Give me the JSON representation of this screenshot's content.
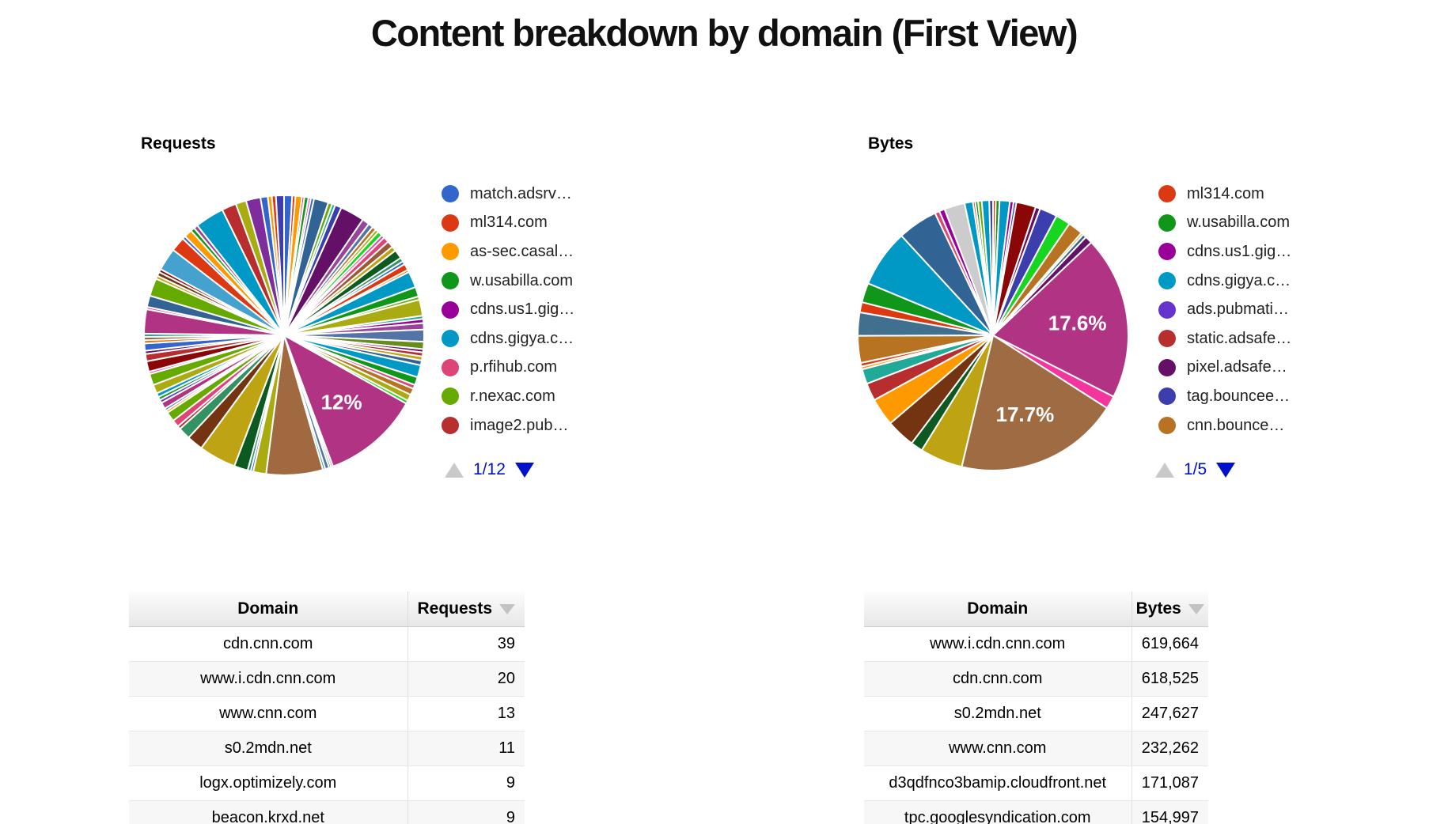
{
  "page": {
    "title": "Content breakdown by domain (First View)"
  },
  "requests_section": {
    "caption": "Requests",
    "pager": {
      "page": "1/12",
      "up_enabled": false,
      "down_enabled": true
    },
    "legend": [
      {
        "label": "match.adsrv…",
        "color": "#3366cc"
      },
      {
        "label": "ml314.com",
        "color": "#dc3912"
      },
      {
        "label": "as-sec.casal…",
        "color": "#ff9900"
      },
      {
        "label": "w.usabilla.com",
        "color": "#109618"
      },
      {
        "label": "cdns.us1.gig…",
        "color": "#990099"
      },
      {
        "label": "cdns.gigya.c…",
        "color": "#0099c6"
      },
      {
        "label": "p.rfihub.com",
        "color": "#dd4477"
      },
      {
        "label": "r.nexac.com",
        "color": "#66aa00"
      },
      {
        "label": "image2.pub…",
        "color": "#b82e2e"
      }
    ],
    "table": {
      "headers": [
        "Domain",
        "Requests"
      ],
      "sorted_by": "Requests",
      "sort_direction": "desc",
      "rows": [
        [
          "cdn.cnn.com",
          "39"
        ],
        [
          "www.i.cdn.cnn.com",
          "20"
        ],
        [
          "www.cnn.com",
          "13"
        ],
        [
          "s0.2mdn.net",
          "11"
        ],
        [
          "logx.optimizely.com",
          "9"
        ],
        [
          "beacon.krxd.net",
          "9"
        ]
      ]
    }
  },
  "bytes_section": {
    "caption": "Bytes",
    "pager": {
      "page": "1/5",
      "up_enabled": false,
      "down_enabled": true
    },
    "legend": [
      {
        "label": "ml314.com",
        "color": "#dc3912"
      },
      {
        "label": "w.usabilla.com",
        "color": "#109618"
      },
      {
        "label": "cdns.us1.gig…",
        "color": "#990099"
      },
      {
        "label": "cdns.gigya.c…",
        "color": "#0099c6"
      },
      {
        "label": "ads.pubmati…",
        "color": "#6633cc"
      },
      {
        "label": "static.adsafe…",
        "color": "#b82e2e"
      },
      {
        "label": "pixel.adsafe…",
        "color": "#651067"
      },
      {
        "label": "tag.bouncee…",
        "color": "#3b3eac"
      },
      {
        "label": "cnn.bounce…",
        "color": "#b77322"
      }
    ],
    "table": {
      "headers": [
        "Domain",
        "Bytes"
      ],
      "sorted_by": "Bytes",
      "sort_direction": "desc",
      "rows": [
        [
          "www.i.cdn.cnn.com",
          "619,664"
        ],
        [
          "cdn.cnn.com",
          "618,525"
        ],
        [
          "s0.2mdn.net",
          "247,627"
        ],
        [
          "www.cnn.com",
          "232,262"
        ],
        [
          "d3qdfnco3bamip.cloudfront.net",
          "171,087"
        ],
        [
          "tpc.googlesyndication.com",
          "154,997"
        ]
      ]
    }
  },
  "chart_data": [
    {
      "type": "pie",
      "title": "Requests",
      "unit": "percent_of_requests",
      "legend_position": "right",
      "labeled_slices": [
        {
          "label": "12%",
          "value": 12
        }
      ],
      "slices": [
        {
          "c": "#3366cc",
          "v": 1.0
        },
        {
          "c": "#dc3912",
          "v": 0.4
        },
        {
          "c": "#ff9900",
          "v": 0.8
        },
        {
          "c": "#dd4477",
          "v": 0.3
        },
        {
          "c": "#109618",
          "v": 0.5
        },
        {
          "c": "#f4359e",
          "v": 0.3
        },
        {
          "c": "#3366cc",
          "v": 0.4
        },
        {
          "c": "#316395",
          "v": 1.8
        },
        {
          "c": "#66aa00",
          "v": 0.5
        },
        {
          "c": "#22aa99",
          "v": 0.4
        },
        {
          "c": "#3b3eac",
          "v": 0.8
        },
        {
          "c": "#651067",
          "v": 3.0
        },
        {
          "c": "#994499",
          "v": 0.9
        },
        {
          "c": "#5574a6",
          "v": 0.6
        },
        {
          "c": "#b77322",
          "v": 0.5
        },
        {
          "c": "#aaaa11",
          "v": 0.4
        },
        {
          "c": "#16d620",
          "v": 0.6
        },
        {
          "c": "#f4359e",
          "v": 0.4
        },
        {
          "c": "#dd4477",
          "v": 0.7
        },
        {
          "c": "#9c5935",
          "v": 0.8
        },
        {
          "c": "#bea413",
          "v": 0.6
        },
        {
          "c": "#0c5922",
          "v": 1.1
        },
        {
          "c": "#329262",
          "v": 0.5
        },
        {
          "c": "#3366cc",
          "v": 0.4
        },
        {
          "c": "#dc3912",
          "v": 0.8
        },
        {
          "c": "#e67300",
          "v": 0.3
        },
        {
          "c": "#0099c6",
          "v": 2.0
        },
        {
          "c": "#109618",
          "v": 1.2
        },
        {
          "c": "#66aa00",
          "v": 0.4
        },
        {
          "c": "#aaaa11",
          "v": 2.0
        },
        {
          "c": "#22aa99",
          "v": 0.4
        },
        {
          "c": "#990099",
          "v": 0.5
        },
        {
          "c": "#994499",
          "v": 0.8
        },
        {
          "c": "#5574a6",
          "v": 1.5
        },
        {
          "c": "#668d1c",
          "v": 0.9
        },
        {
          "c": "#651067",
          "v": 0.4
        },
        {
          "c": "#b82e2e",
          "v": 0.5
        },
        {
          "c": "#bea413",
          "v": 0.5
        },
        {
          "c": "#316395",
          "v": 0.6
        },
        {
          "c": "#0099c6",
          "v": 1.5
        },
        {
          "c": "#109618",
          "v": 1.0
        },
        {
          "c": "#dd4477",
          "v": 0.5
        },
        {
          "c": "#b77322",
          "v": 0.8
        },
        {
          "c": "#aaaa11",
          "v": 0.8
        },
        {
          "c": "#16d620",
          "v": 0.4
        },
        {
          "c": "#b13383",
          "v": 12.0,
          "label": "12%"
        },
        {
          "c": "#f4359e",
          "v": 0.25
        },
        {
          "c": "#109618",
          "v": 0.25
        },
        {
          "c": "#5574a6",
          "v": 0.5
        },
        {
          "c": "#22aa99",
          "v": 0.3
        },
        {
          "c": "#a0693f",
          "v": 7.0
        },
        {
          "c": "#aaaa11",
          "v": 1.6
        },
        {
          "c": "#3366cc",
          "v": 0.3
        },
        {
          "c": "#329262",
          "v": 0.4
        },
        {
          "c": "#0c5922",
          "v": 1.7
        },
        {
          "c": "#bea413",
          "v": 4.6
        },
        {
          "c": "#743411",
          "v": 2.0
        },
        {
          "c": "#329262",
          "v": 1.5
        },
        {
          "c": "#b82e2e",
          "v": 0.4
        },
        {
          "c": "#dd4477",
          "v": 0.9
        },
        {
          "c": "#66aa00",
          "v": 1.2
        },
        {
          "c": "#ff9900",
          "v": 0.3
        },
        {
          "c": "#3366cc",
          "v": 0.3
        },
        {
          "c": "#b13383",
          "v": 0.8
        },
        {
          "c": "#6633cc",
          "v": 0.4
        },
        {
          "c": "#109618",
          "v": 0.4
        },
        {
          "c": "#0099c6",
          "v": 0.5
        },
        {
          "c": "#aaaa11",
          "v": 1.1
        },
        {
          "c": "#66aa00",
          "v": 1.4
        },
        {
          "c": "#f4359e",
          "v": 0.3
        },
        {
          "c": "#8b0707",
          "v": 1.3
        },
        {
          "c": "#b82e2e",
          "v": 0.9
        },
        {
          "c": "#651067",
          "v": 0.4
        },
        {
          "c": "#3366cc",
          "v": 0.9
        },
        {
          "c": "#e67300",
          "v": 0.4
        },
        {
          "c": "#9c5935",
          "v": 0.4
        },
        {
          "c": "#22aa99",
          "v": 0.4
        },
        {
          "c": "#b13383",
          "v": 3.0
        },
        {
          "c": "#f4359e",
          "v": 0.3
        },
        {
          "c": "#316395",
          "v": 1.4
        },
        {
          "c": "#66aa00",
          "v": 2.2
        },
        {
          "c": "#bea413",
          "v": 0.4
        },
        {
          "c": "#743411",
          "v": 0.5
        },
        {
          "c": "#8b0707",
          "v": 0.4
        },
        {
          "c": "#45a1ce",
          "v": 2.8
        },
        {
          "c": "#dc3912",
          "v": 1.8
        },
        {
          "c": "#3366cc",
          "v": 0.4
        },
        {
          "c": "#ff9900",
          "v": 1.0
        },
        {
          "c": "#109618",
          "v": 0.5
        },
        {
          "c": "#994499",
          "v": 0.5
        },
        {
          "c": "#0099c6",
          "v": 3.6
        },
        {
          "c": "#b82e2e",
          "v": 1.8
        },
        {
          "c": "#aaaa11",
          "v": 1.3
        },
        {
          "c": "#7f2d9c",
          "v": 1.8
        },
        {
          "c": "#3366cc",
          "v": 0.9
        },
        {
          "c": "#ff9900",
          "v": 0.5
        },
        {
          "c": "#dc3912",
          "v": 0.5
        },
        {
          "c": "#3b3eac",
          "v": 1.0
        }
      ]
    },
    {
      "type": "pie",
      "title": "Bytes",
      "unit": "percent_of_bytes",
      "legend_position": "right",
      "labeled_slices": [
        {
          "label": "17.6%",
          "value": 17.6
        },
        {
          "label": "17.7%",
          "value": 17.7
        }
      ],
      "slices": [
        {
          "c": "#dc3912",
          "v": 0.3
        },
        {
          "c": "#109618",
          "v": 0.4
        },
        {
          "c": "#0099c6",
          "v": 1.1
        },
        {
          "c": "#990099",
          "v": 0.4
        },
        {
          "c": "#3b3eac",
          "v": 0.3
        },
        {
          "c": "#8b0707",
          "v": 2.1
        },
        {
          "c": "#651067",
          "v": 0.5
        },
        {
          "c": "#3b3eac",
          "v": 1.9
        },
        {
          "c": "#16d620",
          "v": 1.6
        },
        {
          "c": "#b77322",
          "v": 1.6
        },
        {
          "c": "#ff9900",
          "v": 0.25
        },
        {
          "c": "#316395",
          "v": 0.4
        },
        {
          "c": "#651067",
          "v": 0.8
        },
        {
          "c": "#b13383",
          "v": 17.6,
          "label": "17.6%"
        },
        {
          "c": "#f4359e",
          "v": 1.4
        },
        {
          "c": "#9f6b43",
          "v": 17.7,
          "label": "17.7%"
        },
        {
          "c": "#bea413",
          "v": 4.6
        },
        {
          "c": "#0c5922",
          "v": 1.3
        },
        {
          "c": "#743411",
          "v": 3.1
        },
        {
          "c": "#ff9900",
          "v": 3.0
        },
        {
          "c": "#b82e2e",
          "v": 1.9
        },
        {
          "c": "#22aa99",
          "v": 1.6
        },
        {
          "c": "#ff9900",
          "v": 0.3
        },
        {
          "c": "#dc3912",
          "v": 0.4
        },
        {
          "c": "#b77322",
          "v": 2.9
        },
        {
          "c": "#41708e",
          "v": 2.5
        },
        {
          "c": "#dc3912",
          "v": 1.1
        },
        {
          "c": "#109618",
          "v": 2.1
        },
        {
          "c": "#0099c6",
          "v": 6.2
        },
        {
          "c": "#316395",
          "v": 4.3
        },
        {
          "c": "#dd4477",
          "v": 0.5
        },
        {
          "c": "#990099",
          "v": 0.6
        },
        {
          "c": "#cccccc",
          "v": 2.2
        },
        {
          "c": "#0099c6",
          "v": 0.9
        },
        {
          "c": "#dc3912",
          "v": 0.25
        },
        {
          "c": "#109618",
          "v": 0.3
        },
        {
          "c": "#66aa00",
          "v": 0.4
        },
        {
          "c": "#0099c6",
          "v": 0.8
        },
        {
          "c": "#3b3eac",
          "v": 0.4
        }
      ]
    }
  ]
}
